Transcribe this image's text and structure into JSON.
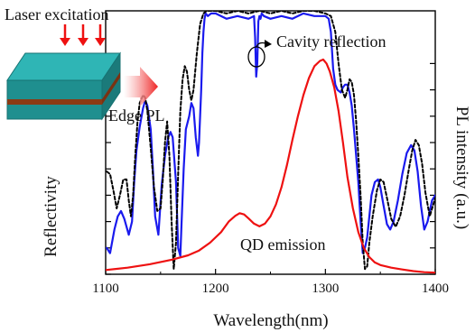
{
  "chart_data": {
    "type": "line",
    "xlabel": "Wavelength(nm)",
    "ylabel_left": "Reflectivity",
    "ylabel_right": "PL intensity (a.u.)",
    "xlim": [
      1100,
      1400
    ],
    "x_ticks": [
      1100,
      1200,
      1300,
      1400
    ],
    "x_tick_labels": [
      "1100",
      "1200",
      "1300",
      "1400"
    ],
    "ylim": [
      0,
      1
    ],
    "y_ticks_left": [
      0,
      0.1,
      0.2,
      0.3,
      0.4,
      0.5,
      0.6,
      0.7,
      0.8
    ],
    "y_ticks_right": [
      0,
      0.1,
      0.2,
      0.3,
      0.4,
      0.5,
      0.6,
      0.7,
      0.8
    ],
    "grid": false,
    "legend": "none",
    "annotations": {
      "laser": "Laser excitation",
      "edge_pl": "Edge PL",
      "cavity": "Cavity reflection",
      "qd": "QD emission"
    },
    "colors": {
      "measured_reflectivity": "#1a1aee",
      "simulated_reflectivity": "#000000",
      "qd_emission": "#ee1111",
      "slab_top": "#2fb5b5",
      "slab_front": "#1f8f8f",
      "slab_side": "#1b7a7a",
      "active_layer": "#8b3a14",
      "arrows": "#ee1111"
    },
    "series": [
      {
        "style": "solid",
        "color": "#1a1aee",
        "x": [
          1101,
          1104,
          1108,
          1111,
          1114,
          1117,
          1121,
          1124,
          1126,
          1128,
          1131,
          1134,
          1136,
          1138,
          1141,
          1143,
          1145,
          1148,
          1151,
          1154,
          1157,
          1159,
          1161,
          1164,
          1166,
          1168,
          1169,
          1171,
          1173,
          1176,
          1178,
          1180,
          1182,
          1184,
          1185,
          1187,
          1188,
          1189,
          1190,
          1191,
          1193,
          1196,
          1200,
          1210,
          1220,
          1230,
          1235,
          1236,
          1237,
          1238,
          1239,
          1240,
          1241,
          1242,
          1244,
          1250,
          1260,
          1270,
          1280,
          1290,
          1300,
          1303,
          1305,
          1307,
          1309,
          1311,
          1314,
          1316,
          1318,
          1320,
          1322,
          1324,
          1326,
          1328,
          1330,
          1332,
          1334,
          1336,
          1338,
          1340,
          1342,
          1345,
          1348,
          1350,
          1353,
          1356,
          1359,
          1362,
          1366,
          1370,
          1374,
          1378,
          1381,
          1384,
          1387,
          1390,
          1393,
          1397,
          1400
        ],
        "y": [
          0.1,
          0.08,
          0.17,
          0.22,
          0.24,
          0.21,
          0.15,
          0.2,
          0.35,
          0.47,
          0.56,
          0.63,
          0.66,
          0.64,
          0.55,
          0.4,
          0.22,
          0.15,
          0.34,
          0.45,
          0.52,
          0.54,
          0.52,
          0.35,
          0.1,
          0.07,
          0.18,
          0.4,
          0.55,
          0.6,
          0.65,
          0.63,
          0.52,
          0.45,
          0.5,
          0.7,
          0.84,
          0.92,
          0.97,
          0.99,
          0.98,
          0.99,
          0.99,
          0.97,
          0.98,
          0.97,
          0.98,
          0.9,
          0.75,
          0.8,
          0.96,
          0.98,
          0.97,
          0.99,
          0.98,
          0.97,
          0.98,
          0.97,
          0.99,
          0.98,
          0.98,
          0.97,
          0.92,
          0.78,
          0.72,
          0.7,
          0.69,
          0.71,
          0.72,
          0.72,
          0.69,
          0.64,
          0.55,
          0.45,
          0.35,
          0.2,
          0.08,
          0.1,
          0.14,
          0.22,
          0.3,
          0.35,
          0.36,
          0.33,
          0.26,
          0.19,
          0.17,
          0.2,
          0.28,
          0.38,
          0.46,
          0.49,
          0.47,
          0.39,
          0.26,
          0.17,
          0.2,
          0.28,
          0.3
        ]
      },
      {
        "style": "dotted",
        "color": "#000000",
        "x": [
          1101,
          1104,
          1107,
          1110,
          1113,
          1116,
          1119,
          1121,
          1123,
          1125,
          1127,
          1129,
          1131,
          1134,
          1136,
          1138,
          1141,
          1144,
          1147,
          1150,
          1152,
          1154,
          1156,
          1158,
          1160,
          1162,
          1164,
          1166,
          1168,
          1170,
          1172,
          1174,
          1176,
          1178,
          1180,
          1183,
          1186,
          1189,
          1192,
          1195,
          1200,
          1210,
          1220,
          1230,
          1240,
          1250,
          1260,
          1270,
          1280,
          1290,
          1300,
          1305,
          1309,
          1312,
          1315,
          1318,
          1320,
          1322,
          1324,
          1326,
          1328,
          1330,
          1332,
          1334,
          1336,
          1338,
          1340,
          1343,
          1347,
          1350,
          1353,
          1356,
          1360,
          1364,
          1368,
          1372,
          1376,
          1379,
          1382,
          1385,
          1388,
          1391,
          1395,
          1400
        ],
        "y": [
          0.39,
          0.38,
          0.32,
          0.25,
          0.3,
          0.36,
          0.36,
          0.28,
          0.22,
          0.3,
          0.45,
          0.58,
          0.65,
          0.68,
          0.67,
          0.62,
          0.48,
          0.33,
          0.24,
          0.25,
          0.36,
          0.5,
          0.58,
          0.45,
          0.2,
          0.02,
          0.12,
          0.38,
          0.62,
          0.74,
          0.79,
          0.77,
          0.7,
          0.66,
          0.7,
          0.84,
          0.95,
          0.99,
          1.0,
          1.0,
          1.0,
          0.99,
          1.0,
          0.99,
          1.0,
          0.99,
          1.0,
          0.99,
          1.0,
          1.0,
          0.99,
          0.98,
          0.92,
          0.8,
          0.7,
          0.67,
          0.7,
          0.74,
          0.73,
          0.68,
          0.58,
          0.45,
          0.3,
          0.12,
          0.02,
          0.03,
          0.12,
          0.22,
          0.32,
          0.36,
          0.35,
          0.29,
          0.21,
          0.18,
          0.22,
          0.3,
          0.4,
          0.47,
          0.51,
          0.49,
          0.42,
          0.31,
          0.22,
          0.29
        ]
      },
      {
        "style": "solid",
        "color": "#ee1111",
        "x": [
          1100,
          1120,
          1140,
          1160,
          1175,
          1185,
          1195,
          1205,
          1212,
          1218,
          1222,
          1226,
          1230,
          1235,
          1240,
          1245,
          1250,
          1255,
          1260,
          1265,
          1270,
          1275,
          1280,
          1285,
          1290,
          1295,
          1298,
          1301,
          1304,
          1308,
          1312,
          1316,
          1320,
          1325,
          1330,
          1335,
          1340,
          1345,
          1350,
          1360,
          1370,
          1380,
          1390,
          1400
        ],
        "y": [
          0.016,
          0.025,
          0.038,
          0.055,
          0.072,
          0.09,
          0.12,
          0.16,
          0.2,
          0.222,
          0.232,
          0.227,
          0.212,
          0.192,
          0.182,
          0.192,
          0.22,
          0.265,
          0.33,
          0.415,
          0.51,
          0.6,
          0.68,
          0.745,
          0.79,
          0.81,
          0.815,
          0.8,
          0.77,
          0.71,
          0.62,
          0.5,
          0.37,
          0.25,
          0.16,
          0.1,
          0.065,
          0.045,
          0.035,
          0.025,
          0.018,
          0.012,
          0.008,
          0.006
        ]
      }
    ]
  }
}
